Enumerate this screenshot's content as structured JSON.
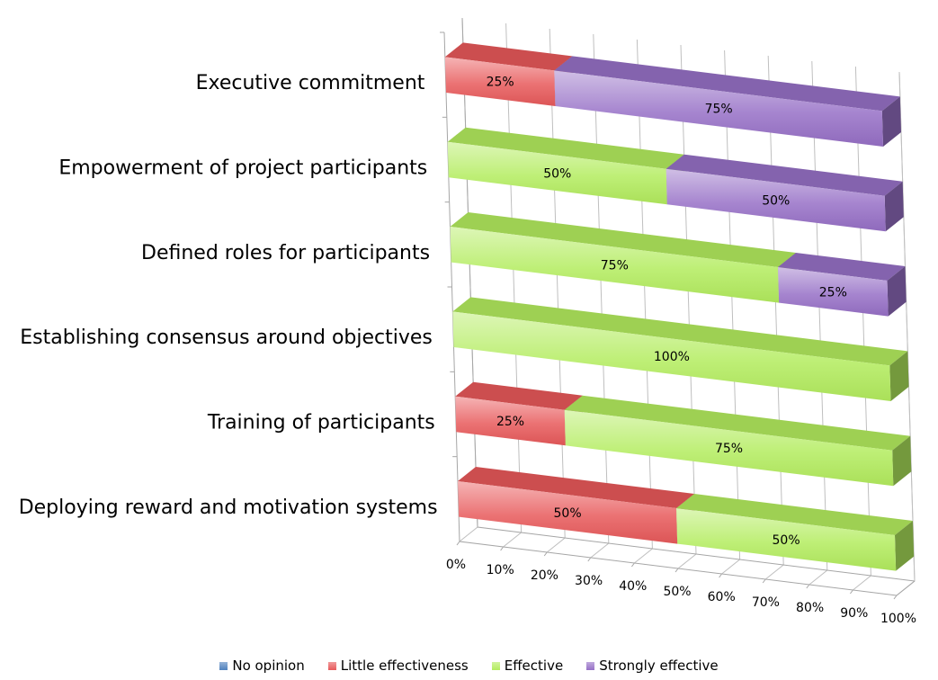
{
  "chart_data": {
    "type": "bar",
    "orientation": "horizontal",
    "stacked": "percent",
    "three_d": true,
    "categories": [
      "Executive commitment",
      "Empowerment of project participants",
      "Defined roles for participants",
      "Establishing consensus around objectives",
      "Training of participants",
      "Deploying reward and motivation systems"
    ],
    "series": [
      {
        "name": "No opinion",
        "color": "#4f81bd",
        "values": [
          0,
          0,
          0,
          0,
          0,
          0
        ]
      },
      {
        "name": "Little effectiveness",
        "color": "#e8595a",
        "values": [
          25,
          0,
          0,
          0,
          25,
          50
        ]
      },
      {
        "name": "Effective",
        "color": "#b3ec5e",
        "values": [
          0,
          50,
          75,
          100,
          75,
          50
        ]
      },
      {
        "name": "Strongly effective",
        "color": "#9670c6",
        "values": [
          75,
          50,
          25,
          0,
          0,
          0
        ]
      }
    ],
    "data_labels": [
      [
        "",
        "25%",
        "",
        "75%"
      ],
      [
        "",
        "",
        "50%",
        "50%"
      ],
      [
        "",
        "",
        "75%",
        "25%"
      ],
      [
        "",
        "",
        "100%",
        ""
      ],
      [
        "",
        "25%",
        "75%",
        ""
      ],
      [
        "",
        "50%",
        "50%",
        ""
      ]
    ],
    "x_ticks": [
      "0%",
      "10%",
      "20%",
      "30%",
      "40%",
      "50%",
      "60%",
      "70%",
      "80%",
      "90%",
      "100%"
    ],
    "xlim": [
      0,
      100
    ],
    "grid": true,
    "legend": "bottom"
  }
}
